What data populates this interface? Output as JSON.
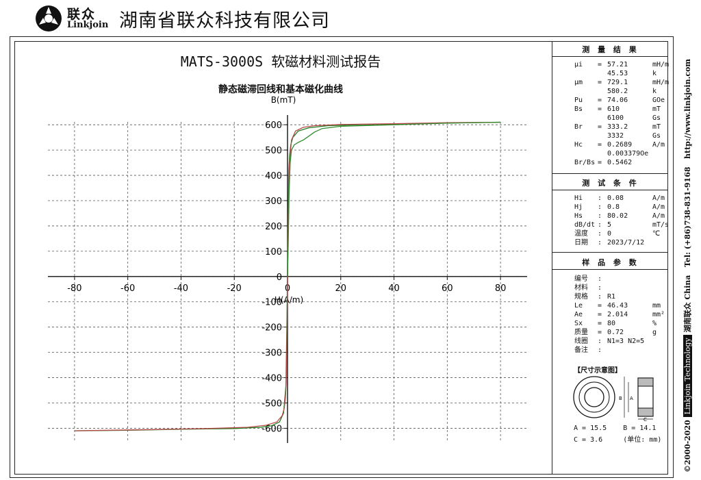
{
  "header": {
    "logo_cn": "联众",
    "logo_en": "Linkjoin",
    "company": "湖南省联众科技有限公司"
  },
  "report": {
    "title": "MATS-3000S 软磁材料测试报告",
    "chart_title": "静态磁滞回线和基本磁化曲线"
  },
  "chart_data": {
    "type": "line",
    "title": "静态磁滞回线和基本磁化曲线",
    "xlabel": "H(A/m)",
    "ylabel": "B(mT)",
    "xlim": [
      -90,
      90
    ],
    "ylim": [
      -680,
      660
    ],
    "x_ticks": [
      -80,
      -60,
      -40,
      -20,
      0,
      20,
      40,
      60,
      80
    ],
    "y_ticks": [
      -600,
      -500,
      -400,
      -300,
      -200,
      -100,
      0,
      100,
      200,
      300,
      400,
      500,
      600
    ],
    "grid": true,
    "colors": [
      "#1a7a1a",
      "#b84a4a",
      "#2e8b2e"
    ],
    "series": [
      {
        "x": [
          -80,
          -60,
          -40,
          -20,
          -10,
          -6,
          -3,
          -1.5,
          -0.6,
          -0.2,
          0.1,
          0.3,
          0.5,
          0.8,
          1.2,
          2,
          4,
          8,
          15,
          30,
          50,
          80
        ],
        "y": [
          -610,
          -608,
          -604,
          -601,
          -596,
          -590,
          -575,
          -540,
          -430,
          -150,
          120,
          300,
          420,
          480,
          520,
          550,
          575,
          588,
          596,
          601,
          605,
          610
        ]
      },
      {
        "x": [
          80,
          60,
          40,
          20,
          10,
          6,
          3,
          1.5,
          0.6,
          0.2,
          -0.1,
          -0.3,
          -0.5,
          -0.8,
          -1.2,
          -2,
          -4,
          -8,
          -15,
          -30,
          -50,
          -80
        ],
        "y": [
          610,
          608,
          604,
          601,
          596,
          590,
          575,
          540,
          430,
          150,
          -120,
          -300,
          -420,
          -480,
          -520,
          -550,
          -575,
          -588,
          -596,
          -601,
          -605,
          -610
        ]
      },
      {
        "x": [
          0,
          0.3,
          0.6,
          1,
          1.5,
          2.5,
          4,
          6,
          8,
          10,
          13,
          20,
          40,
          60,
          80
        ],
        "y": [
          0,
          150,
          330,
          450,
          500,
          520,
          530,
          540,
          555,
          570,
          585,
          594,
          600,
          606,
          610
        ]
      }
    ]
  },
  "results": {
    "title": "测 量 结 果",
    "rows": [
      {
        "k": "μi",
        "s": "=",
        "v": "57.21",
        "u": "mH/m"
      },
      {
        "k": "",
        "s": "",
        "v": "45.53",
        "u": "k"
      },
      {
        "k": "μm",
        "s": "=",
        "v": "729.1",
        "u": "mH/m"
      },
      {
        "k": "",
        "s": "",
        "v": "580.2",
        "u": "k"
      },
      {
        "k": "Pu",
        "s": "=",
        "v": "74.06",
        "u": "GOe"
      },
      {
        "k": "Bs",
        "s": "=",
        "v": "610",
        "u": "mT"
      },
      {
        "k": "",
        "s": "",
        "v": "6100",
        "u": "Gs"
      },
      {
        "k": "Br",
        "s": "=",
        "v": "333.2",
        "u": "mT"
      },
      {
        "k": "",
        "s": "",
        "v": "3332",
        "u": "Gs"
      },
      {
        "k": "Hc",
        "s": "=",
        "v": "0.2689",
        "u": "A/m"
      },
      {
        "k": "",
        "s": "",
        "v": "0.003379Oe",
        "u": ""
      },
      {
        "k": "Br/Bs",
        "s": "=",
        "v": "0.5462",
        "u": ""
      }
    ]
  },
  "conditions": {
    "title": "测 试 条 件",
    "rows": [
      {
        "k": "Hi",
        "s": ":",
        "v": "0.08",
        "u": "A/m"
      },
      {
        "k": "Hj",
        "s": ":",
        "v": "0.8",
        "u": "A/m"
      },
      {
        "k": "Hs",
        "s": ":",
        "v": "80.02",
        "u": "A/m"
      },
      {
        "k": "dB/dt",
        "s": ":",
        "v": "5",
        "u": "mT/s"
      },
      {
        "k": "温度",
        "s": ":",
        "v": "0",
        "u": "℃"
      },
      {
        "k": "日期",
        "s": ":",
        "v": "2023/7/12",
        "u": ""
      }
    ]
  },
  "sample": {
    "title": "样 品 参 数",
    "rows": [
      {
        "k": "编号",
        "s": ":",
        "v": "",
        "u": ""
      },
      {
        "k": "材料",
        "s": ":",
        "v": "",
        "u": ""
      },
      {
        "k": "规格",
        "s": ":",
        "v": "R1",
        "u": ""
      },
      {
        "k": "Le",
        "s": "=",
        "v": "46.43",
        "u": "mm"
      },
      {
        "k": "Ae",
        "s": "=",
        "v": "2.014",
        "u": "mm²"
      },
      {
        "k": "Sx",
        "s": "=",
        "v": "80",
        "u": "%"
      },
      {
        "k": "质量",
        "s": "=",
        "v": "0.72",
        "u": "g"
      },
      {
        "k": "线圈",
        "s": ":",
        "v": "N1=3 N2=5",
        "u": ""
      },
      {
        "k": "备注",
        "s": ":",
        "v": "",
        "u": ""
      }
    ]
  },
  "dimensions": {
    "title": "【尺寸示意图】",
    "label_a": "A",
    "label_b": "B",
    "label_c": "C",
    "line1": "A = 15.5    B = 14.1",
    "line2": "C = 3.6     (单位: mm)"
  },
  "side_text": {
    "copyright": "©2000-2020",
    "brand_box": "Linkjoin Technology",
    "brand_cn": "湖南联众 China",
    "tel": "Tel: (+86)738-831-9168",
    "url": "http://www.linkjoin.com"
  }
}
